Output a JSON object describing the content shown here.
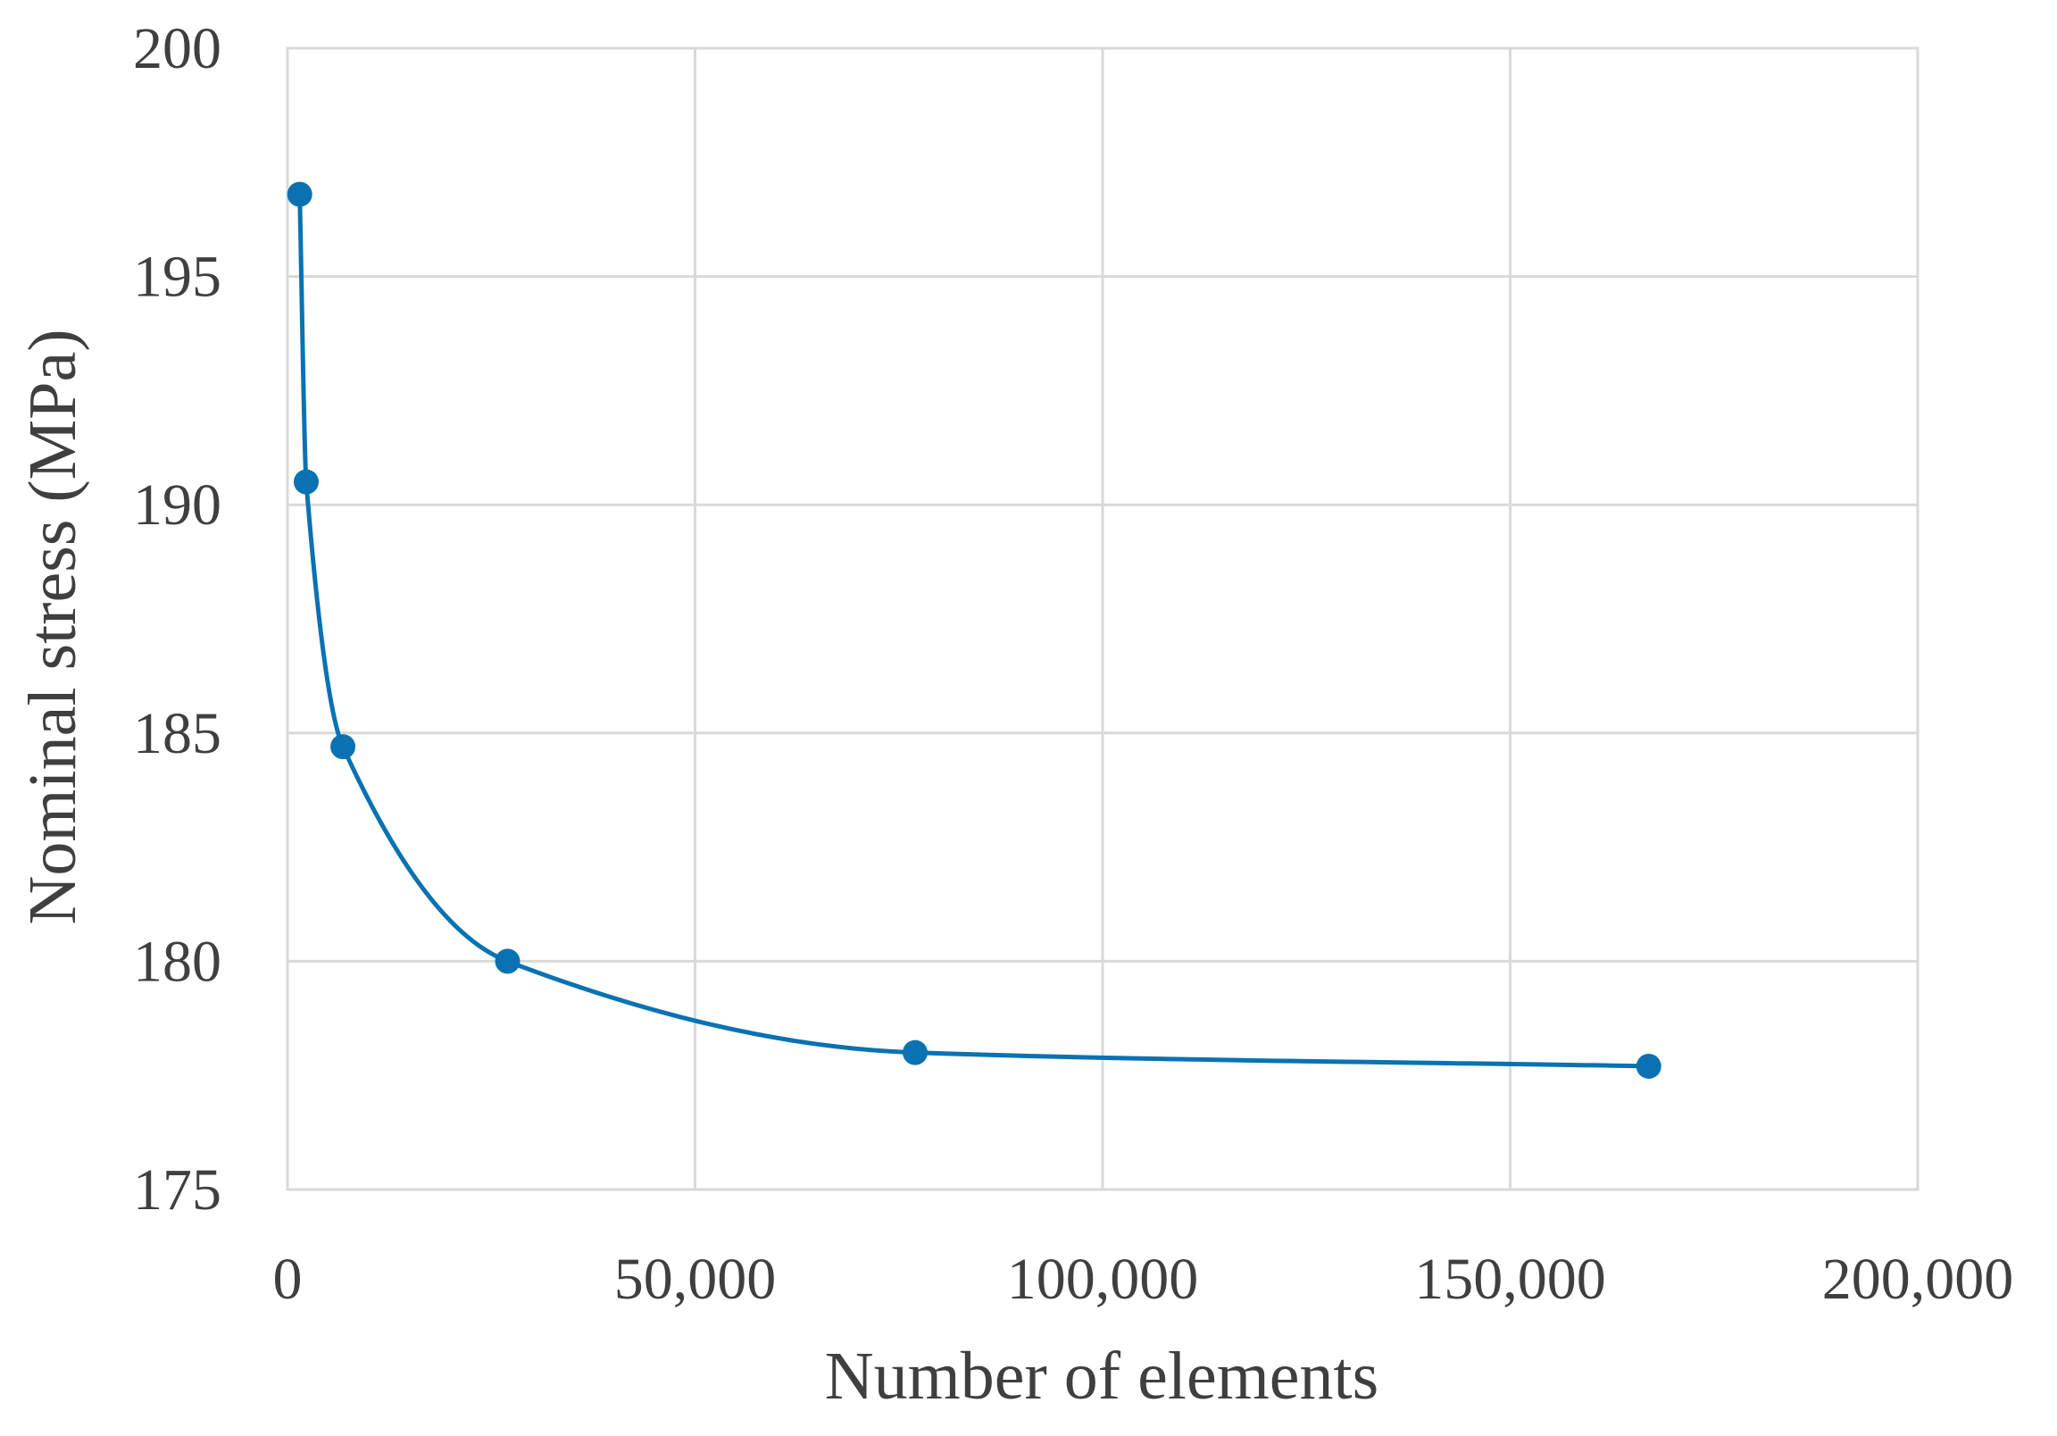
{
  "chart_data": {
    "type": "scatter",
    "title": "",
    "xlabel": "Number of elements",
    "ylabel": "Nominal stress (MPa)",
    "xlim": [
      0,
      200000
    ],
    "ylim": [
      175,
      200
    ],
    "x_ticks": [
      0,
      50000,
      100000,
      150000,
      200000
    ],
    "x_tick_labels": [
      "0",
      "50,000",
      "100,000",
      "150,000",
      "200,000"
    ],
    "y_ticks": [
      175,
      180,
      185,
      190,
      195,
      200
    ],
    "y_tick_labels": [
      "175",
      "180",
      "185",
      "190",
      "195",
      "200"
    ],
    "grid": true,
    "legend": "none",
    "line_style": "smoothed",
    "series": [
      {
        "color": "#0a72b2",
        "x": [
          1500,
          2300,
          6800,
          27000,
          77000,
          167000
        ],
        "y": [
          196.8,
          190.5,
          184.7,
          180.0,
          178.0,
          177.7
        ]
      }
    ]
  }
}
